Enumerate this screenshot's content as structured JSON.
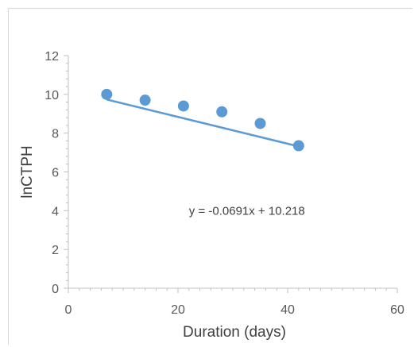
{
  "chart_data": {
    "type": "scatter",
    "title": "",
    "xlabel": "Duration (days)",
    "ylabel": "lnCTPH",
    "xlim": [
      0,
      60
    ],
    "ylim": [
      0,
      12
    ],
    "x_ticks": [
      "0",
      "20",
      "40",
      "60"
    ],
    "y_ticks": [
      "0",
      "2",
      "4",
      "6",
      "8",
      "10",
      "12"
    ],
    "grid": false,
    "series": [
      {
        "x": [
          7,
          14,
          21,
          28,
          35,
          42
        ],
        "y": [
          10.0,
          9.7,
          9.4,
          9.1,
          8.5,
          7.35
        ],
        "color": "#5b9bd5"
      }
    ],
    "trendline": {
      "slope": -0.0691,
      "intercept": 10.218,
      "x_range": [
        7,
        42
      ],
      "color": "#5b9bd5"
    },
    "annotation": "y = -0.0691x + 10.218"
  }
}
